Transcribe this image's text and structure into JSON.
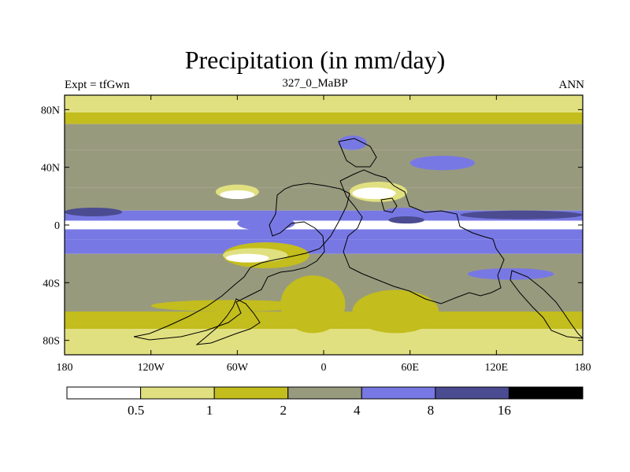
{
  "chart_data": {
    "type": "heatmap",
    "title": "Precipitation (in mm/day)",
    "subtitle_left": "Expt = tfGwn",
    "subtitle_center": "327_0_MaBP",
    "subtitle_right": "ANN",
    "variable": "Precipitation",
    "units": "mm/day",
    "xlim": [
      -180,
      180
    ],
    "ylim": [
      -90,
      90
    ],
    "x_ticks": [
      {
        "value": -180,
        "label": "180"
      },
      {
        "value": -120,
        "label": "120W"
      },
      {
        "value": -60,
        "label": "60W"
      },
      {
        "value": 0,
        "label": "0"
      },
      {
        "value": 60,
        "label": "60E"
      },
      {
        "value": 120,
        "label": "120E"
      },
      {
        "value": 180,
        "label": "180"
      }
    ],
    "y_ticks": [
      {
        "value": 80,
        "label": "80N"
      },
      {
        "value": 40,
        "label": "40N"
      },
      {
        "value": 0,
        "label": "0"
      },
      {
        "value": -40,
        "label": "40S"
      },
      {
        "value": -80,
        "label": "80S"
      }
    ],
    "levels": [
      0.5,
      1,
      2,
      4,
      8,
      16
    ],
    "level_labels": [
      "0.5",
      "1",
      "2",
      "4",
      "8",
      "16"
    ],
    "colors": [
      "#ffffff",
      "#e1e080",
      "#c3bd1d",
      "#989a7e",
      "#7878e4",
      "#4b4b91",
      "#000000"
    ],
    "bands": [
      {
        "lat": [
          78,
          90
        ],
        "class": 1
      },
      {
        "lat": [
          70,
          78
        ],
        "class": 2
      },
      {
        "lat": [
          52,
          70
        ],
        "class": 3
      },
      {
        "lat": [
          26,
          52
        ],
        "class": 3
      },
      {
        "lat": [
          10,
          26
        ],
        "class": 3
      },
      {
        "lat": [
          3,
          10
        ],
        "class": 4
      },
      {
        "lat": [
          -3,
          3
        ],
        "class": 0
      },
      {
        "lat": [
          -10,
          -3
        ],
        "class": 4
      },
      {
        "lat": [
          -20,
          -10
        ],
        "class": 4
      },
      {
        "lat": [
          -42,
          -20
        ],
        "class": 3
      },
      {
        "lat": [
          -60,
          -42
        ],
        "class": 3
      },
      {
        "lat": [
          -72,
          -60
        ],
        "class": 2
      },
      {
        "lat": [
          -90,
          -72
        ],
        "class": 1
      }
    ],
    "patches": [
      {
        "lon": -180,
        "lat": 12,
        "w": 40,
        "h": 6,
        "class": 5
      },
      {
        "lon": 95,
        "lat": 10,
        "w": 85,
        "h": 6,
        "class": 5
      },
      {
        "lon": -75,
        "lat": 28,
        "w": 30,
        "h": 10,
        "class": 1
      },
      {
        "lon": -72,
        "lat": 24,
        "w": 24,
        "h": 6,
        "class": 0
      },
      {
        "lon": 18,
        "lat": 30,
        "w": 40,
        "h": 14,
        "class": 1
      },
      {
        "lon": 20,
        "lat": 26,
        "w": 30,
        "h": 8,
        "class": 0
      },
      {
        "lon": -70,
        "lat": -12,
        "w": 60,
        "h": 18,
        "class": 2
      },
      {
        "lon": -70,
        "lat": -16,
        "w": 45,
        "h": 10,
        "class": 1
      },
      {
        "lon": -68,
        "lat": -20,
        "w": 30,
        "h": 6,
        "class": 0
      },
      {
        "lon": -30,
        "lat": -35,
        "w": 45,
        "h": 40,
        "class": 2
      },
      {
        "lon": 20,
        "lat": -45,
        "w": 60,
        "h": 30,
        "class": 2
      },
      {
        "lon": -120,
        "lat": -52,
        "w": 110,
        "h": 8,
        "class": 2
      },
      {
        "lon": -90,
        "lat": -74,
        "w": 100,
        "h": 12,
        "class": 1
      },
      {
        "lon": 60,
        "lat": 48,
        "w": 45,
        "h": 10,
        "class": 4
      },
      {
        "lon": 10,
        "lat": 62,
        "w": 20,
        "h": 10,
        "class": 4
      },
      {
        "lon": 40,
        "lat": 12,
        "w": 30,
        "h": 8,
        "class": 4
      },
      {
        "lon": 45,
        "lat": 6,
        "w": 25,
        "h": 5,
        "class": 5
      },
      {
        "lon": 100,
        "lat": -30,
        "w": 60,
        "h": 8,
        "class": 4
      },
      {
        "lon": -60,
        "lat": 6,
        "w": 40,
        "h": 10,
        "class": 4
      }
    ]
  }
}
